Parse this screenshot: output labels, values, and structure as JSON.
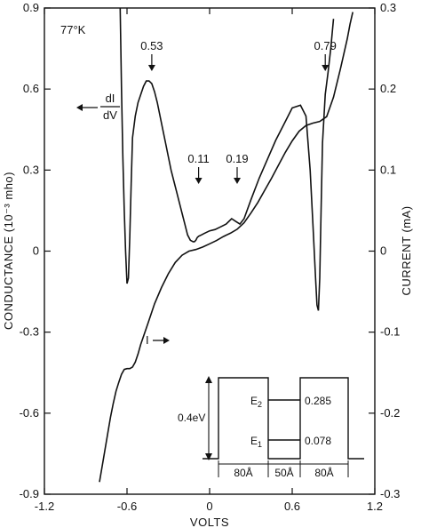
{
  "chart_data": {
    "type": "line",
    "xlabel": "VOLTS",
    "ylabel_left": "CONDUCTANCE (10⁻³ mho)",
    "ylabel_right": "CURRENT (mA)",
    "xlim": [
      -1.2,
      1.2
    ],
    "ylim_left": [
      -0.9,
      0.9
    ],
    "ylim_right": [
      -0.3,
      0.3
    ],
    "x_ticks": [
      "-1.2",
      "-0.6",
      "0",
      "0.6",
      "1.2"
    ],
    "x_tick_values": [
      -1.2,
      -0.6,
      0,
      0.6,
      1.2
    ],
    "y_ticks_left": [
      "0.9",
      "0.6",
      "0.3",
      "0",
      "-0.3",
      "-0.6",
      "-0.9"
    ],
    "y_tick_values_left": [
      0.9,
      0.6,
      0.3,
      0,
      -0.3,
      -0.6,
      -0.9
    ],
    "y_ticks_right": [
      "0.3",
      "0.2",
      "0.1",
      "0",
      "-0.1",
      "-0.2",
      "-0.3"
    ],
    "y_tick_values_right": [
      0.3,
      0.2,
      0.1,
      0,
      -0.1,
      -0.2,
      -0.3
    ],
    "grid": false,
    "temperature_label": "77°K",
    "series": [
      {
        "label": "dI/dV",
        "axis": "left",
        "x": [
          -0.65,
          -0.64,
          -0.63,
          -0.62,
          -0.61,
          -0.6,
          -0.59,
          -0.58,
          -0.57,
          -0.56,
          -0.54,
          -0.52,
          -0.5,
          -0.48,
          -0.46,
          -0.44,
          -0.42,
          -0.4,
          -0.38,
          -0.36,
          -0.34,
          -0.32,
          -0.3,
          -0.28,
          -0.26,
          -0.24,
          -0.22,
          -0.2,
          -0.18,
          -0.16,
          -0.14,
          -0.12,
          -0.11,
          -0.1,
          -0.09,
          -0.08,
          -0.06,
          -0.04,
          -0.02,
          0,
          0.04,
          0.08,
          0.12,
          0.16,
          0.19,
          0.22,
          0.25,
          0.3,
          0.36,
          0.42,
          0.48,
          0.54,
          0.6,
          0.66,
          0.7,
          0.73,
          0.75,
          0.77,
          0.78,
          0.79,
          0.8,
          0.81,
          0.82,
          0.84,
          0.86,
          0.88,
          0.9
        ],
        "y": [
          0.9,
          0.6,
          0.35,
          0.15,
          0.0,
          -0.12,
          -0.1,
          0.05,
          0.25,
          0.42,
          0.5,
          0.55,
          0.58,
          0.61,
          0.63,
          0.63,
          0.62,
          0.59,
          0.55,
          0.5,
          0.45,
          0.4,
          0.35,
          0.3,
          0.26,
          0.22,
          0.18,
          0.14,
          0.1,
          0.06,
          0.04,
          0.035,
          0.035,
          0.04,
          0.05,
          0.055,
          0.06,
          0.065,
          0.07,
          0.075,
          0.08,
          0.09,
          0.1,
          0.12,
          0.11,
          0.1,
          0.12,
          0.19,
          0.27,
          0.34,
          0.41,
          0.47,
          0.53,
          0.54,
          0.5,
          0.3,
          0.1,
          -0.1,
          -0.2,
          -0.22,
          -0.1,
          0.15,
          0.4,
          0.58,
          0.66,
          0.75,
          0.86
        ]
      },
      {
        "label": "I",
        "axis": "right",
        "x": [
          -0.8,
          -0.78,
          -0.76,
          -0.74,
          -0.72,
          -0.7,
          -0.68,
          -0.66,
          -0.64,
          -0.62,
          -0.6,
          -0.58,
          -0.56,
          -0.54,
          -0.52,
          -0.5,
          -0.45,
          -0.4,
          -0.35,
          -0.3,
          -0.25,
          -0.2,
          -0.15,
          -0.1,
          -0.05,
          0,
          0.05,
          0.1,
          0.15,
          0.2,
          0.25,
          0.3,
          0.35,
          0.4,
          0.45,
          0.5,
          0.55,
          0.6,
          0.65,
          0.7,
          0.75,
          0.8,
          0.85,
          0.9,
          0.95,
          1.0,
          1.02,
          1.04
        ],
        "y": [
          -0.285,
          -0.265,
          -0.245,
          -0.225,
          -0.205,
          -0.188,
          -0.173,
          -0.162,
          -0.152,
          -0.146,
          -0.145,
          -0.145,
          -0.143,
          -0.137,
          -0.127,
          -0.115,
          -0.09,
          -0.065,
          -0.045,
          -0.028,
          -0.014,
          -0.005,
          0.0,
          0.002,
          0.005,
          0.009,
          0.013,
          0.018,
          0.022,
          0.027,
          0.035,
          0.047,
          0.06,
          0.075,
          0.09,
          0.106,
          0.122,
          0.136,
          0.148,
          0.155,
          0.158,
          0.16,
          0.166,
          0.19,
          0.225,
          0.262,
          0.28,
          0.295
        ]
      }
    ],
    "annotations": [
      {
        "label": "0.53",
        "x": -0.42
      },
      {
        "label": "0.11",
        "x": -0.08
      },
      {
        "label": "0.19",
        "x": 0.2
      },
      {
        "label": "0.79",
        "x": 0.84
      }
    ],
    "curve_labels": {
      "dIdV_top": "dI",
      "dIdV_bottom": "dV",
      "current": "I"
    },
    "inset": {
      "barrier_height": "0.4eV",
      "levels": [
        {
          "name": "E₂",
          "sub": "2",
          "base": "E",
          "value": "0.285",
          "energy": 0.285
        },
        {
          "name": "E₁",
          "sub": "1",
          "base": "E",
          "value": "0.078",
          "energy": 0.078
        }
      ],
      "widths": [
        "80Å",
        "50Å",
        "80Å"
      ]
    }
  }
}
